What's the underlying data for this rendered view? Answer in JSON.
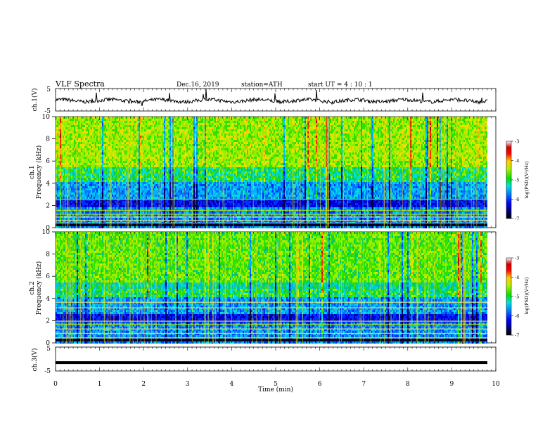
{
  "header": {
    "title": "VLF  Spectra",
    "date": "Dec.16, 2019",
    "station": "station=ATH",
    "start_ut": "start  UT  =   4  : 10 : 1"
  },
  "chart_data": [
    {
      "type": "line",
      "panel": "ch1-waveform",
      "ylabel": "ch.1(V)",
      "ylim": [
        -5,
        5
      ],
      "yticks": [
        "5",
        "-5"
      ],
      "xlim": [
        0,
        10
      ],
      "description_values": "noisy waveform near 0 V with spikes"
    },
    {
      "type": "heatmap",
      "panel": "ch1-spectrogram",
      "ylabel_line1": "ch.1",
      "ylabel_line2": "Frequency  (kHz)",
      "ylim": [
        0,
        10
      ],
      "yticks": [
        "0",
        "2",
        "4",
        "6",
        "8",
        "10"
      ],
      "xlim": [
        0,
        9.85
      ],
      "colorbar": {
        "label": "log(PSD)(V²/Hz)",
        "ticks": [
          "-3",
          "-4",
          "-5",
          "-6",
          "-7"
        ],
        "range": [
          -7,
          -3
        ]
      }
    },
    {
      "type": "heatmap",
      "panel": "ch2-spectrogram",
      "ylabel_line1": "ch.2",
      "ylabel_line2": "Frequency  (kHz)",
      "ylim": [
        0,
        10
      ],
      "yticks": [
        "0",
        "2",
        "4",
        "6",
        "8",
        "10"
      ],
      "xlim": [
        0,
        9.85
      ],
      "colorbar": {
        "label": "log(PSD)(V²/Hz)",
        "ticks": [
          "-3",
          "-4",
          "-5",
          "-6",
          "-7"
        ],
        "range": [
          -7,
          -3
        ]
      }
    },
    {
      "type": "line",
      "panel": "ch3-waveform",
      "ylabel": "ch.3(V)",
      "ylim": [
        -5,
        5
      ],
      "yticks": [
        "5",
        "-5"
      ],
      "xlim": [
        0,
        10
      ],
      "level": -1.5
    }
  ],
  "x_axis": {
    "label": "Time  (min)",
    "ticks": [
      "0",
      "1",
      "2",
      "3",
      "4",
      "5",
      "6",
      "7",
      "8",
      "9",
      "10"
    ]
  }
}
